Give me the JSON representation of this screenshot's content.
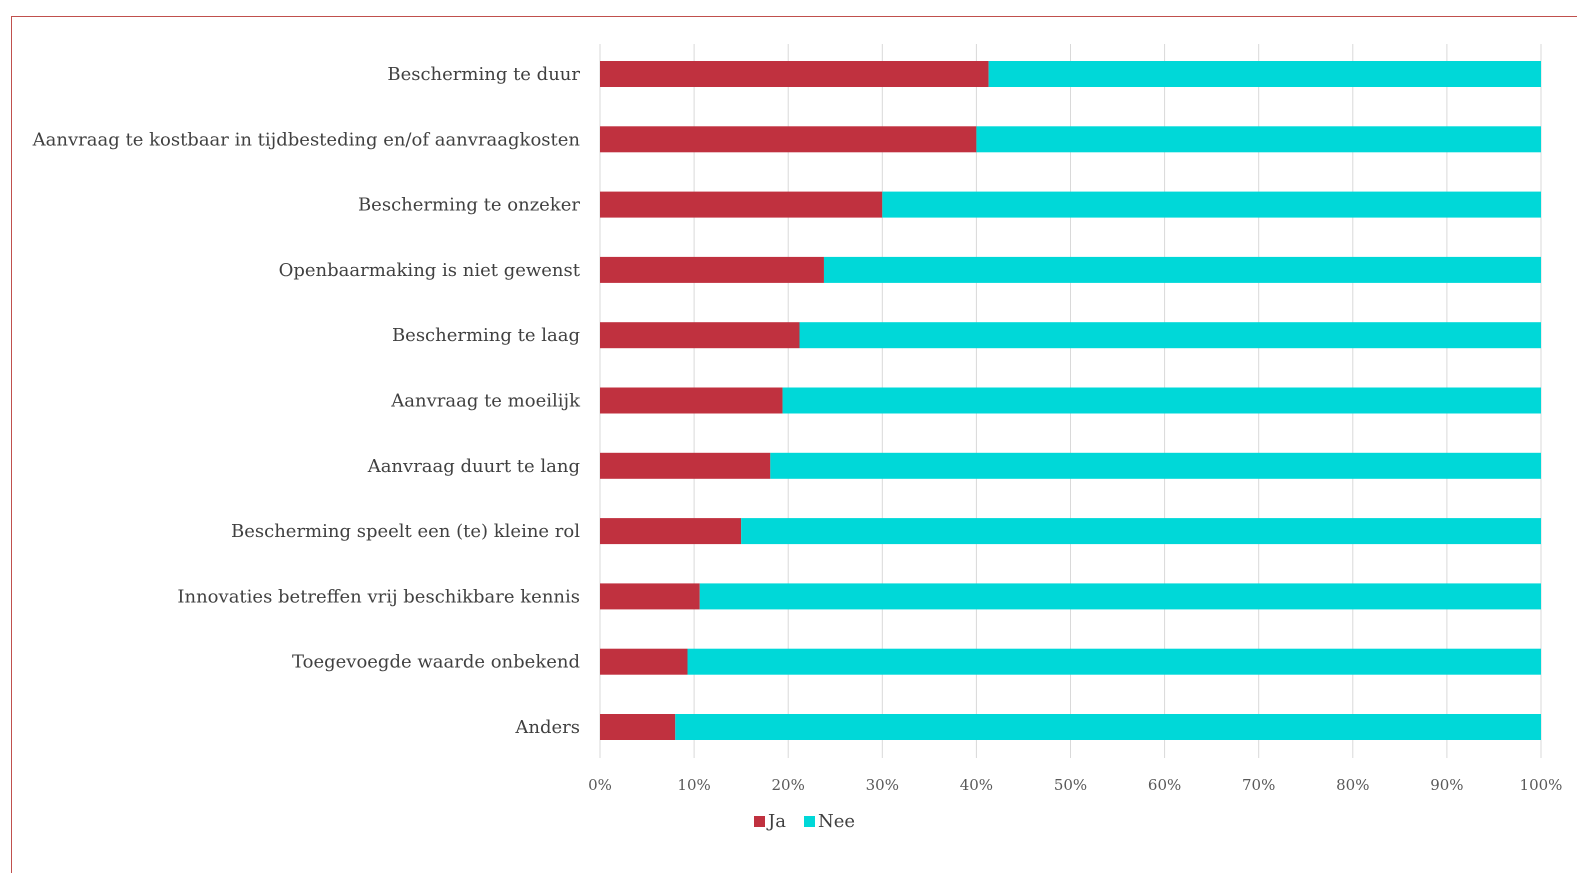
{
  "chart_data": {
    "type": "bar",
    "orientation": "horizontal",
    "stacked": "percent",
    "categories": [
      "Bescherming te duur",
      "Aanvraag te kostbaar in tijdbesteding en/of aanvraagkosten",
      "Bescherming te onzeker",
      "Openbaarmaking is niet gewenst",
      "Bescherming te laag",
      "Aanvraag te moeilijk",
      "Aanvraag duurt te lang",
      "Bescherming speelt een (te) kleine rol",
      "Innovaties betreffen vrij beschikbare kennis",
      "Toegevoegde waarde onbekend",
      "Anders"
    ],
    "series": [
      {
        "name": "Ja",
        "color": "#c0313f",
        "values": [
          41.3,
          40.0,
          30.0,
          23.8,
          21.2,
          19.4,
          18.1,
          15.0,
          10.6,
          9.3,
          8.0
        ]
      },
      {
        "name": "Nee",
        "color": "#00d8d8",
        "values": [
          58.7,
          60.0,
          70.0,
          76.2,
          78.8,
          80.6,
          81.9,
          85.0,
          89.4,
          90.7,
          92.0
        ]
      }
    ],
    "xlim": [
      0,
      100
    ],
    "xticks": [
      "0%",
      "10%",
      "20%",
      "30%",
      "40%",
      "50%",
      "60%",
      "70%",
      "80%",
      "90%",
      "100%"
    ],
    "grid": true,
    "legend_position": "bottom",
    "title": "",
    "xlabel": "",
    "ylabel": ""
  }
}
